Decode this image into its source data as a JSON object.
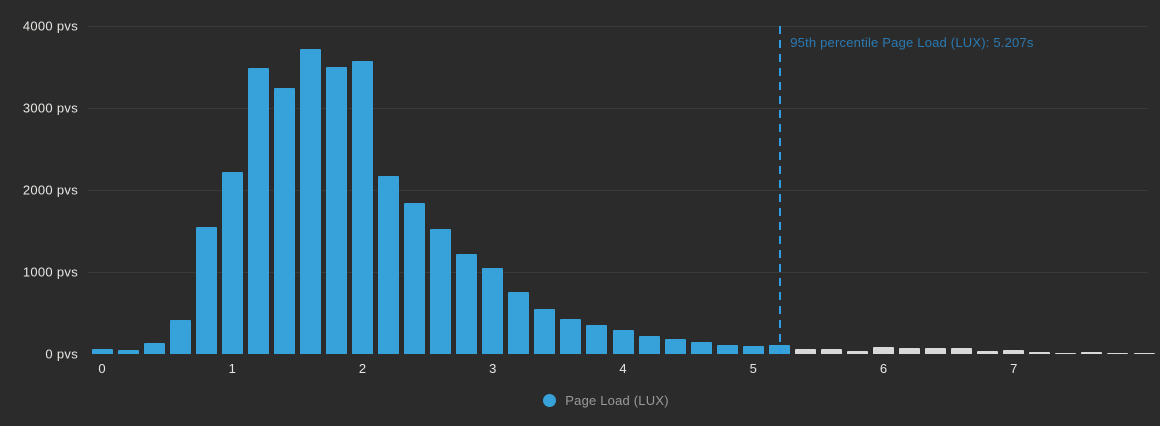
{
  "legend": {
    "label": "Page Load (LUX)"
  },
  "chart_data": {
    "type": "bar",
    "subtype": "histogram",
    "series_name": "Page Load (LUX)",
    "bin_width_seconds": 0.2,
    "x_bin_start_seconds": [
      0.0,
      0.2,
      0.4,
      0.6,
      0.8,
      1.0,
      1.2,
      1.4,
      1.6,
      1.8,
      2.0,
      2.2,
      2.4,
      2.6,
      2.8,
      3.0,
      3.2,
      3.4,
      3.6,
      3.8,
      4.0,
      4.2,
      4.4,
      4.6,
      4.8,
      5.0,
      5.2,
      5.4,
      5.6,
      5.8,
      6.0,
      6.2,
      6.4,
      6.6,
      6.8,
      7.0,
      7.2,
      7.4,
      7.6,
      7.8,
      8.0
    ],
    "values_pvs": [
      65,
      45,
      130,
      410,
      1550,
      2220,
      3490,
      3240,
      3715,
      3500,
      3570,
      2170,
      1840,
      1520,
      1215,
      1050,
      760,
      555,
      430,
      350,
      295,
      215,
      185,
      145,
      115,
      100,
      105,
      60,
      60,
      40,
      90,
      70,
      70,
      70,
      40,
      50,
      25,
      15,
      25,
      10,
      5
    ],
    "beyond_percentile_start_index": 27,
    "ylim": [
      0,
      4000
    ],
    "y_tick_labels": [
      "4000 pvs",
      "3000 pvs",
      "2000 pvs",
      "1000 pvs",
      "0 pvs"
    ],
    "y_tick_values": [
      4000,
      3000,
      2000,
      1000,
      0
    ],
    "x_tick_labels": [
      "0",
      "1",
      "2",
      "3",
      "4",
      "5",
      "6",
      "7"
    ],
    "x_tick_values": [
      0,
      1,
      2,
      3,
      4,
      5,
      6,
      7
    ],
    "grid": "horizontal",
    "legend_position": "bottom-center",
    "percentile_annotation": {
      "label": "95th percentile Page Load (LUX): 5.207s",
      "value_seconds": 5.207
    },
    "colors": {
      "background": "#2b2b2b",
      "bar_primary": "#37a2da",
      "bar_beyond_percentile": "#d9d9d9",
      "annotation_line": "#2e9ee3",
      "annotation_text": "#2b7ab2",
      "grid_line": "#3a3a3a",
      "axis_text": "#e8e6e3",
      "legend_text": "#9a9a9a"
    }
  }
}
